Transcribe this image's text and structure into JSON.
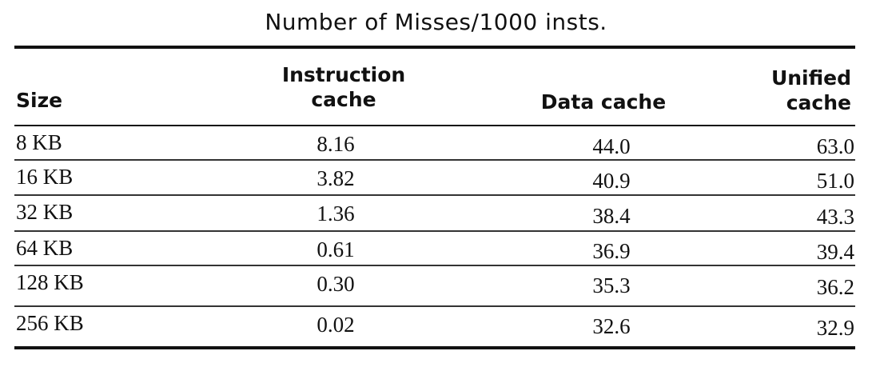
{
  "title": "Number of Misses/1000 insts.",
  "headers": {
    "size": "Size",
    "instruction_line1": "Instruction",
    "instruction_line2": "cache",
    "data": "Data cache",
    "unified_line1": "Unified",
    "unified_line2": "cache"
  },
  "rows": [
    {
      "size": "8 KB",
      "instruction": "8.16",
      "data": "44.0",
      "unified": "63.0"
    },
    {
      "size": "16 KB",
      "instruction": "3.82",
      "data": "40.9",
      "unified": "51.0"
    },
    {
      "size": "32 KB",
      "instruction": "1.36",
      "data": "38.4",
      "unified": "43.3"
    },
    {
      "size": "64 KB",
      "instruction": "0.61",
      "data": "36.9",
      "unified": "39.4"
    },
    {
      "size": "128 KB",
      "instruction": "0.30",
      "data": "35.3",
      "unified": "36.2"
    },
    {
      "size": "256 KB",
      "instruction": "0.02",
      "data": "32.6",
      "unified": "32.9"
    }
  ]
}
